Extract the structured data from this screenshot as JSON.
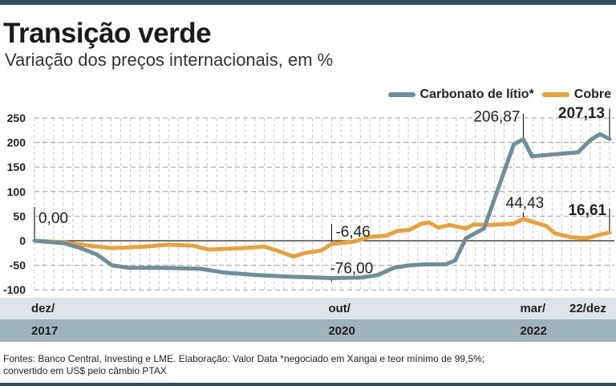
{
  "title": "Transição verde",
  "subtitle": "Variação dos preços internacionais, em %",
  "footer": "Fontes: Banco Central, Investing e LME. Elaboração: Valor Data *negociado em Xangai e teor mínimo de 99,5%; convertido em US$ pelo câmbio PTAX",
  "colors": {
    "lithium": "#6d8e9b",
    "copper": "#e9a23b",
    "band_light": "#dce4e9",
    "band_dark": "#9fb3bb"
  },
  "chart_data": {
    "type": "line",
    "title": "Transição verde",
    "subtitle": "Variação dos preços internacionais, em %",
    "xlabel": "",
    "ylabel": "%",
    "x_unit": "months since dez/2017",
    "xlim": [
      0,
      60
    ],
    "ylim": [
      -100,
      250
    ],
    "yticks": [
      250,
      200,
      150,
      100,
      50,
      0,
      -50,
      -100
    ],
    "ytick_labels": [
      "250",
      "200",
      "150",
      "100",
      "50",
      "0",
      "-50",
      "-100"
    ],
    "grid": true,
    "legend": "top-right",
    "xticks": [
      {
        "x": 0,
        "month": "dez/",
        "year": "2017"
      },
      {
        "x": 31,
        "month": "out/",
        "year": "2020"
      },
      {
        "x": 51,
        "month": "mar/",
        "year": "2022"
      },
      {
        "x": 60,
        "month": "22/dez",
        "year": ""
      }
    ],
    "series": [
      {
        "name": "Carbonato de lítio*",
        "color": "#6d8e9b",
        "x": [
          0,
          3.1,
          4.8,
          6.5,
          8.1,
          9.8,
          13.2,
          17.3,
          19.9,
          23.2,
          26.6,
          31,
          34.1,
          35.8,
          37.5,
          39.1,
          40.8,
          42.9,
          43.9,
          45,
          46.9,
          50,
          51,
          51.9,
          56.7,
          58,
          59,
          60
        ],
        "y": [
          0,
          -5,
          -15,
          -28,
          -50,
          -55,
          -55,
          -57,
          -65,
          -70,
          -73,
          -76,
          -75,
          -70,
          -55,
          -50,
          -48,
          -48,
          -40,
          5,
          25,
          196,
          206.87,
          172,
          180,
          205,
          217,
          207.13
        ]
      },
      {
        "name": "Cobre",
        "color": "#e9a23b",
        "x": [
          0,
          3.1,
          5.7,
          8.1,
          11.5,
          14,
          16.5,
          18.2,
          21.5,
          24,
          25.3,
          27,
          28.2,
          29.9,
          31,
          33.3,
          35,
          36.6,
          37.9,
          39.1,
          40.4,
          41.2,
          42.1,
          43.3,
          45,
          45.8,
          47.5,
          50,
          51,
          53.4,
          54.3,
          56,
          57.6,
          58.9,
          60
        ],
        "y": [
          0,
          -3,
          -10,
          -15,
          -12,
          -8,
          -10,
          -18,
          -15,
          -12,
          -20,
          -32,
          -25,
          -20,
          -6.46,
          -2,
          8,
          10,
          20,
          22,
          35,
          37,
          27,
          32,
          25,
          33,
          32,
          35,
          44.43,
          30,
          15,
          7,
          5,
          12,
          16.61
        ]
      }
    ],
    "annotations": [
      {
        "text": "0,00",
        "series": "both",
        "x": 0,
        "y": 0,
        "bold": false
      },
      {
        "text": "-6,46",
        "series": "Cobre",
        "x": 31,
        "y": -6.46,
        "bold": false
      },
      {
        "text": "-76,00",
        "series": "Carbonato de lítio*",
        "x": 31,
        "y": -76,
        "bold": false
      },
      {
        "text": "206,87",
        "series": "Carbonato de lítio*",
        "x": 51,
        "y": 206.87,
        "bold": false
      },
      {
        "text": "44,43",
        "series": "Cobre",
        "x": 51,
        "y": 44.43,
        "bold": false
      },
      {
        "text": "207,13",
        "series": "Carbonato de lítio*",
        "x": 60,
        "y": 207.13,
        "bold": true
      },
      {
        "text": "16,61",
        "series": "Cobre",
        "x": 60,
        "y": 16.61,
        "bold": true
      }
    ]
  }
}
